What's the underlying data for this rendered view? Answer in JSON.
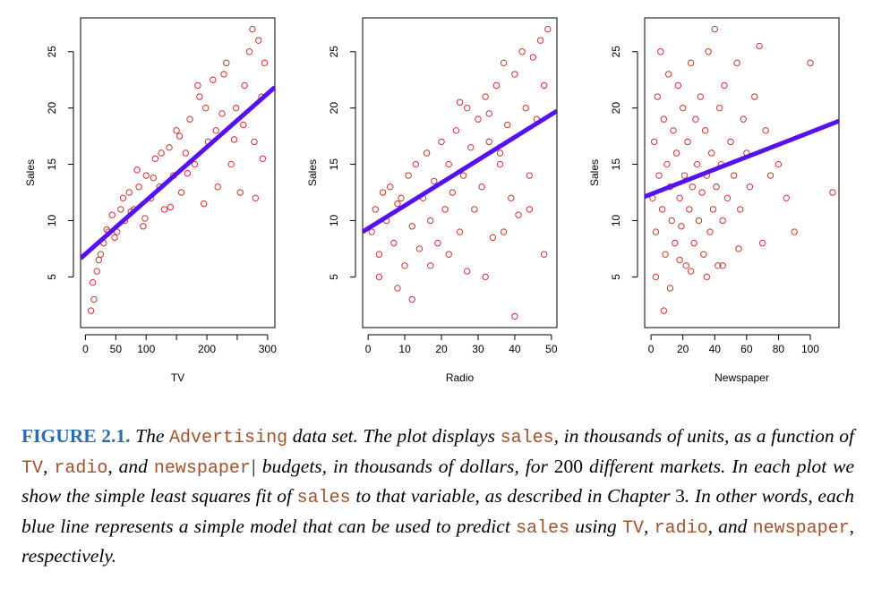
{
  "chart_data": [
    {
      "type": "scatter",
      "title": "",
      "xlabel": "TV",
      "ylabel": "Sales",
      "xlim": [
        -8,
        312
      ],
      "ylim": [
        0.5,
        28
      ],
      "xticks": [
        0,
        50,
        100,
        150,
        200,
        250,
        300
      ],
      "xtick_labels": [
        "0",
        "50",
        "100",
        "",
        "200",
        "",
        "300"
      ],
      "yticks": [
        5,
        10,
        15,
        20,
        25
      ],
      "point_color": "#cc3333",
      "fit_color": "#5511ee",
      "fit": {
        "intercept": 7.03,
        "slope": 0.0475
      },
      "points": [
        [
          9,
          2
        ],
        [
          14,
          3
        ],
        [
          19,
          5.5
        ],
        [
          25,
          7
        ],
        [
          30,
          8
        ],
        [
          38,
          9
        ],
        [
          44,
          10.5
        ],
        [
          52,
          9
        ],
        [
          58,
          11
        ],
        [
          65,
          10
        ],
        [
          72,
          12.5
        ],
        [
          80,
          11
        ],
        [
          88,
          13
        ],
        [
          95,
          9.5
        ],
        [
          100,
          14
        ],
        [
          108,
          12
        ],
        [
          115,
          15.5
        ],
        [
          122,
          13
        ],
        [
          130,
          11
        ],
        [
          138,
          16.5
        ],
        [
          145,
          14
        ],
        [
          150,
          18
        ],
        [
          158,
          12.5
        ],
        [
          165,
          16
        ],
        [
          172,
          19
        ],
        [
          180,
          15
        ],
        [
          188,
          21
        ],
        [
          195,
          11.5
        ],
        [
          202,
          17
        ],
        [
          210,
          22.5
        ],
        [
          218,
          13
        ],
        [
          225,
          19.5
        ],
        [
          232,
          24
        ],
        [
          240,
          15
        ],
        [
          248,
          20
        ],
        [
          255,
          12.5
        ],
        [
          262,
          22
        ],
        [
          270,
          25
        ],
        [
          278,
          17
        ],
        [
          285,
          26
        ],
        [
          290,
          21
        ],
        [
          295,
          24
        ],
        [
          12,
          4.5
        ],
        [
          22,
          6.5
        ],
        [
          35,
          9.2
        ],
        [
          48,
          8.5
        ],
        [
          62,
          12
        ],
        [
          75,
          10.8
        ],
        [
          85,
          14.5
        ],
        [
          98,
          10.2
        ],
        [
          112,
          13.8
        ],
        [
          125,
          16
        ],
        [
          140,
          11.2
        ],
        [
          155,
          17.5
        ],
        [
          168,
          14.2
        ],
        [
          185,
          22
        ],
        [
          198,
          20
        ],
        [
          215,
          18
        ],
        [
          228,
          23
        ],
        [
          245,
          17.2
        ],
        [
          260,
          18.5
        ],
        [
          275,
          27
        ],
        [
          292,
          15.5
        ],
        [
          280,
          12
        ]
      ]
    },
    {
      "type": "scatter",
      "title": "",
      "xlabel": "Radio",
      "ylabel": "Sales",
      "xlim": [
        -1.5,
        51.5
      ],
      "ylim": [
        0.5,
        28
      ],
      "xticks": [
        0,
        10,
        20,
        30,
        40,
        50
      ],
      "xtick_labels": [
        "0",
        "10",
        "20",
        "30",
        "40",
        "50"
      ],
      "yticks": [
        5,
        10,
        15,
        20,
        25
      ],
      "point_color": "#cc3333",
      "fit_color": "#5511ee",
      "fit": {
        "intercept": 9.31,
        "slope": 0.2025
      },
      "points": [
        [
          1,
          9
        ],
        [
          2,
          11
        ],
        [
          3,
          7
        ],
        [
          4,
          12.5
        ],
        [
          5,
          10
        ],
        [
          6,
          13
        ],
        [
          7,
          8
        ],
        [
          8,
          11.5
        ],
        [
          9,
          12
        ],
        [
          10,
          6
        ],
        [
          11,
          14
        ],
        [
          12,
          9.5
        ],
        [
          13,
          15
        ],
        [
          14,
          7.5
        ],
        [
          15,
          12
        ],
        [
          16,
          16
        ],
        [
          17,
          10
        ],
        [
          18,
          13.5
        ],
        [
          19,
          8
        ],
        [
          20,
          17
        ],
        [
          21,
          11
        ],
        [
          22,
          15
        ],
        [
          23,
          12.5
        ],
        [
          24,
          18
        ],
        [
          25,
          9
        ],
        [
          26,
          14
        ],
        [
          27,
          20
        ],
        [
          28,
          16.5
        ],
        [
          29,
          11
        ],
        [
          30,
          19
        ],
        [
          31,
          13
        ],
        [
          32,
          21
        ],
        [
          33,
          17
        ],
        [
          34,
          8.5
        ],
        [
          35,
          22
        ],
        [
          36,
          15
        ],
        [
          37,
          24
        ],
        [
          38,
          18.5
        ],
        [
          39,
          12
        ],
        [
          40,
          23
        ],
        [
          41,
          10.5
        ],
        [
          42,
          25
        ],
        [
          43,
          20
        ],
        [
          44,
          14
        ],
        [
          45,
          24.5
        ],
        [
          46,
          19
        ],
        [
          47,
          26
        ],
        [
          48,
          22
        ],
        [
          49,
          27
        ],
        [
          3,
          5
        ],
        [
          8,
          4
        ],
        [
          12,
          3
        ],
        [
          17,
          6
        ],
        [
          22,
          7
        ],
        [
          27,
          5.5
        ],
        [
          32,
          5
        ],
        [
          37,
          9
        ],
        [
          40,
          1.5
        ],
        [
          44,
          11
        ],
        [
          48,
          7
        ],
        [
          25,
          20.5
        ],
        [
          33,
          19.5
        ],
        [
          36,
          16
        ]
      ]
    },
    {
      "type": "scatter",
      "title": "",
      "xlabel": "Newspaper",
      "ylabel": "Sales",
      "xlim": [
        -4,
        118
      ],
      "ylim": [
        0.5,
        28
      ],
      "xticks": [
        0,
        20,
        40,
        60,
        80,
        100
      ],
      "xtick_labels": [
        "0",
        "20",
        "40",
        "60",
        "80",
        "100"
      ],
      "yticks": [
        5,
        10,
        15,
        20,
        25
      ],
      "point_color": "#cc3333",
      "fit_color": "#5511ee",
      "fit": {
        "intercept": 12.35,
        "slope": 0.055
      },
      "points": [
        [
          1,
          12
        ],
        [
          2,
          17
        ],
        [
          3,
          9
        ],
        [
          4,
          21
        ],
        [
          5,
          14
        ],
        [
          6,
          25
        ],
        [
          7,
          11
        ],
        [
          8,
          19
        ],
        [
          9,
          7
        ],
        [
          10,
          15
        ],
        [
          11,
          23
        ],
        [
          12,
          13
        ],
        [
          13,
          10
        ],
        [
          14,
          18
        ],
        [
          15,
          8
        ],
        [
          16,
          16
        ],
        [
          17,
          22
        ],
        [
          18,
          12
        ],
        [
          19,
          9.5
        ],
        [
          20,
          20
        ],
        [
          21,
          14
        ],
        [
          22,
          6
        ],
        [
          23,
          17
        ],
        [
          24,
          11
        ],
        [
          25,
          24
        ],
        [
          26,
          13
        ],
        [
          27,
          8
        ],
        [
          28,
          19
        ],
        [
          29,
          15
        ],
        [
          30,
          10
        ],
        [
          31,
          21
        ],
        [
          32,
          12.5
        ],
        [
          33,
          7
        ],
        [
          34,
          18
        ],
        [
          35,
          14
        ],
        [
          36,
          25
        ],
        [
          37,
          9
        ],
        [
          38,
          16
        ],
        [
          39,
          11
        ],
        [
          40,
          27
        ],
        [
          41,
          13
        ],
        [
          42,
          6
        ],
        [
          43,
          20
        ],
        [
          44,
          15
        ],
        [
          45,
          10
        ],
        [
          46,
          22
        ],
        [
          48,
          12
        ],
        [
          50,
          17
        ],
        [
          52,
          14
        ],
        [
          54,
          24
        ],
        [
          56,
          11
        ],
        [
          58,
          19
        ],
        [
          60,
          16
        ],
        [
          62,
          13
        ],
        [
          65,
          21
        ],
        [
          68,
          25.5
        ],
        [
          70,
          8
        ],
        [
          72,
          18
        ],
        [
          75,
          14
        ],
        [
          80,
          15
        ],
        [
          85,
          12
        ],
        [
          90,
          9
        ],
        [
          100,
          24
        ],
        [
          114,
          12.5
        ],
        [
          3,
          5
        ],
        [
          8,
          2
        ],
        [
          12,
          4
        ],
        [
          18,
          6.5
        ],
        [
          25,
          5.5
        ],
        [
          35,
          5
        ],
        [
          45,
          6
        ],
        [
          55,
          7.5
        ]
      ]
    }
  ],
  "caption": {
    "figure_label": "FIGURE 2.1.",
    "text_1": " The ",
    "code_1": "Advertising",
    "text_2": " data set. The plot displays ",
    "code_2": "sales",
    "text_3": ", in thousands of units, as a function of ",
    "code_3": "TV",
    "text_4": ", ",
    "code_4": "radio",
    "text_5": ", and ",
    "code_5": "newspaper",
    "text_6": "| budgets, in thousands of dollars, for ",
    "number": "200",
    "text_7": " different markets. In each plot we show the simple least squares fit of ",
    "code_6": "sales",
    "text_8": " to that variable, as described in Chapter ",
    "chapter": "3",
    "text_9": ". In other words, each blue line represents a simple model that can be used to predict ",
    "code_7": "sales",
    "text_10": " using ",
    "code_8": "TV",
    "text_11": ", ",
    "code_9": "radio",
    "text_12": ", and ",
    "code_10": "newspaper",
    "text_13": ", respectively."
  }
}
